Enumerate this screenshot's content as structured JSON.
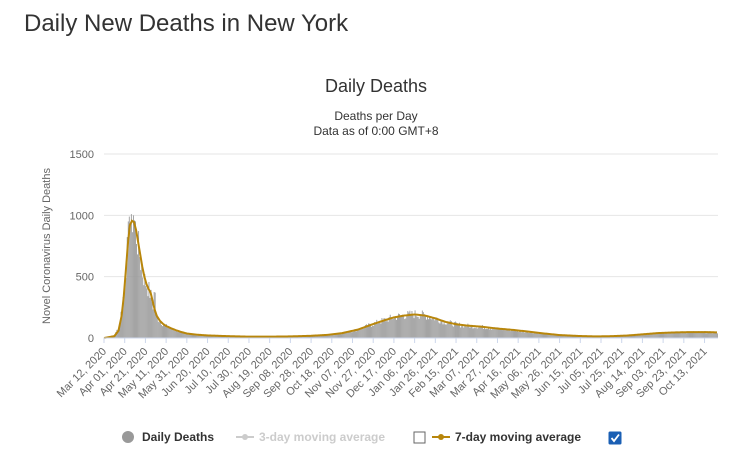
{
  "page": {
    "title": "Daily New Deaths in New York"
  },
  "chart_data": {
    "type": "bar",
    "title": "Daily Deaths",
    "subtitle_1": "Deaths per Day",
    "subtitle_2": "Data as of 0:00 GMT+8",
    "ylabel": "Novel Coronavirus Daily Deaths",
    "xlabel": "",
    "ylim": [
      0,
      1500
    ],
    "y_ticks": [
      "0",
      "500",
      "1000",
      "1500"
    ],
    "x_tick_labels": [
      "Mar 12, 2020",
      "Apr 01, 2020",
      "Apr 21, 2020",
      "May 11, 2020",
      "May 31, 2020",
      "Jun 20, 2020",
      "Jul 10, 2020",
      "Jul 30, 2020",
      "Aug 19, 2020",
      "Sep 08, 2020",
      "Sep 28, 2020",
      "Oct 18, 2020",
      "Nov 07, 2020",
      "Nov 27, 2020",
      "Dec 17, 2020",
      "Jan 06, 2021",
      "Jan 26, 2021",
      "Feb 15, 2021",
      "Mar 07, 2021",
      "Mar 27, 2021",
      "Apr 16, 2021",
      "May 06, 2021",
      "May 26, 2021",
      "Jun 15, 2021",
      "Jul 05, 2021",
      "Jul 25, 2021",
      "Aug 14, 2021",
      "Sep 03, 2021",
      "Sep 23, 2021",
      "Oct 13, 2021"
    ],
    "grid": true,
    "legend_position": "bottom",
    "colors": {
      "bars": "#999999",
      "avg7": "#b8860b",
      "avg3": "#cccccc",
      "grid": "#e6e6e6",
      "check": "#1a5fb4"
    },
    "trend_points_days_since_start": [],
    "series": [
      {
        "name": "Daily Deaths",
        "period_days": 20,
        "points": [
          [
            0,
            0
          ],
          [
            10,
            25
          ],
          [
            14,
            100
          ],
          [
            17,
            250
          ],
          [
            19,
            400
          ],
          [
            21,
            600
          ],
          [
            23,
            800
          ],
          [
            25,
            950
          ],
          [
            27,
            985
          ],
          [
            29,
            940
          ],
          [
            31,
            840
          ],
          [
            33,
            730
          ],
          [
            35,
            620
          ],
          [
            37,
            530
          ],
          [
            39,
            470
          ],
          [
            41,
            430
          ],
          [
            43,
            390
          ],
          [
            45,
            340
          ],
          [
            47,
            260
          ],
          [
            49,
            200
          ],
          [
            51,
            165
          ],
          [
            54,
            135
          ],
          [
            57,
            110
          ],
          [
            60,
            95
          ],
          [
            65,
            75
          ],
          [
            70,
            60
          ],
          [
            75,
            45
          ],
          [
            80,
            35
          ],
          [
            90,
            25
          ],
          [
            100,
            20
          ],
          [
            120,
            14
          ],
          [
            140,
            10
          ],
          [
            160,
            10
          ],
          [
            180,
            12
          ],
          [
            200,
            18
          ],
          [
            215,
            25
          ],
          [
            230,
            40
          ],
          [
            245,
            70
          ],
          [
            258,
            110
          ],
          [
            270,
            145
          ],
          [
            280,
            170
          ],
          [
            290,
            185
          ],
          [
            300,
            195
          ],
          [
            310,
            185
          ],
          [
            320,
            160
          ],
          [
            330,
            130
          ],
          [
            340,
            110
          ],
          [
            350,
            100
          ],
          [
            365,
            90
          ],
          [
            380,
            75
          ],
          [
            395,
            65
          ],
          [
            410,
            50
          ],
          [
            425,
            35
          ],
          [
            440,
            22
          ],
          [
            460,
            15
          ],
          [
            475,
            12
          ],
          [
            490,
            15
          ],
          [
            505,
            20
          ],
          [
            520,
            30
          ],
          [
            535,
            40
          ],
          [
            550,
            45
          ],
          [
            565,
            48
          ],
          [
            580,
            48
          ],
          [
            592,
            45
          ]
        ]
      },
      {
        "name": "7-day moving average",
        "checked": true,
        "points": [
          [
            0,
            0
          ],
          [
            10,
            15
          ],
          [
            14,
            60
          ],
          [
            17,
            180
          ],
          [
            19,
            330
          ],
          [
            21,
            540
          ],
          [
            23,
            760
          ],
          [
            25,
            920
          ],
          [
            27,
            955
          ],
          [
            29,
            945
          ],
          [
            31,
            880
          ],
          [
            33,
            780
          ],
          [
            35,
            680
          ],
          [
            37,
            580
          ],
          [
            39,
            500
          ],
          [
            41,
            440
          ],
          [
            43,
            400
          ],
          [
            45,
            370
          ],
          [
            47,
            300
          ],
          [
            49,
            230
          ],
          [
            51,
            180
          ],
          [
            54,
            140
          ],
          [
            57,
            115
          ],
          [
            60,
            98
          ],
          [
            65,
            78
          ],
          [
            70,
            62
          ],
          [
            75,
            48
          ],
          [
            80,
            37
          ],
          [
            90,
            27
          ],
          [
            100,
            21
          ],
          [
            120,
            15
          ],
          [
            140,
            11
          ],
          [
            160,
            11
          ],
          [
            180,
            13
          ],
          [
            200,
            18
          ],
          [
            215,
            25
          ],
          [
            230,
            40
          ],
          [
            245,
            68
          ],
          [
            258,
            108
          ],
          [
            270,
            142
          ],
          [
            280,
            168
          ],
          [
            290,
            183
          ],
          [
            300,
            192
          ],
          [
            310,
            183
          ],
          [
            320,
            160
          ],
          [
            330,
            131
          ],
          [
            340,
            112
          ],
          [
            350,
            102
          ],
          [
            365,
            92
          ],
          [
            380,
            77
          ],
          [
            395,
            66
          ],
          [
            410,
            52
          ],
          [
            425,
            37
          ],
          [
            440,
            24
          ],
          [
            460,
            16
          ],
          [
            475,
            13
          ],
          [
            490,
            15
          ],
          [
            505,
            20
          ],
          [
            520,
            30
          ],
          [
            535,
            40
          ],
          [
            550,
            45
          ],
          [
            565,
            48
          ],
          [
            580,
            48
          ],
          [
            592,
            46
          ]
        ]
      }
    ],
    "legend": [
      {
        "label": "Daily Deaths",
        "active": true
      },
      {
        "label": "3-day moving average",
        "active": false,
        "checked": false
      },
      {
        "label": "7-day moving average",
        "active": true,
        "checked": true
      }
    ]
  }
}
